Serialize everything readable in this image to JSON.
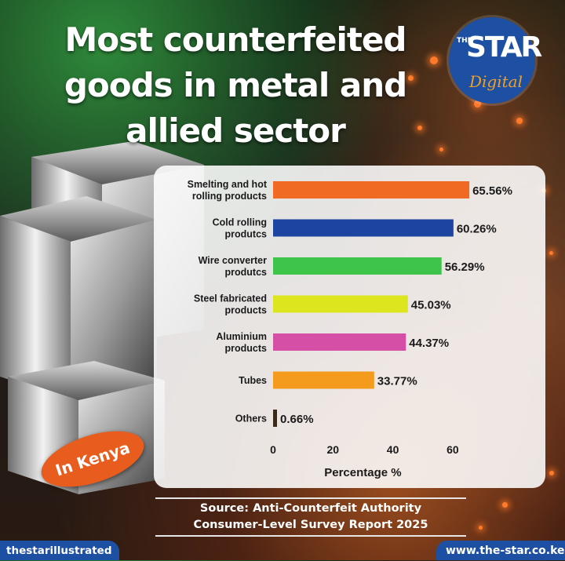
{
  "title_lines": [
    "Most counterfeited",
    "goods in metal and",
    "allied sector"
  ],
  "logo": {
    "the": "THE",
    "star": "STAR",
    "digital": "Digital"
  },
  "badge": "In Kenya",
  "source_lines": [
    "Source: Anti-Counterfeit Authority",
    "Consumer-Level Survey Report 2025"
  ],
  "footer": {
    "left": "thestarillustrated",
    "right": "www.the-star.co.ke"
  },
  "colors": {
    "brand_blue": "#1d4fa3",
    "badge_orange": "#e85d1e",
    "logo_accent": "#f0a023"
  },
  "chart_data": {
    "type": "bar",
    "orientation": "horizontal",
    "categories": [
      [
        "Smelting and hot",
        "rolling products"
      ],
      [
        "Cold rolling",
        "produtcs"
      ],
      [
        "Wire converter",
        "produtcs"
      ],
      [
        "Steel fabricated",
        "products"
      ],
      [
        "Aluminium",
        "products"
      ],
      [
        "Tubes"
      ],
      [
        "Others"
      ]
    ],
    "values": [
      65.56,
      60.26,
      56.29,
      45.03,
      44.37,
      33.77,
      0.66
    ],
    "value_labels": [
      "65.56%",
      "60.26%",
      "56.29%",
      "45.03%",
      "44.37%",
      "33.77%",
      "0.66%"
    ],
    "bar_colors": [
      "#f06a23",
      "#1d44a0",
      "#3ec34b",
      "#dde51f",
      "#d54fa6",
      "#f49a1c",
      "#3a2a1a"
    ],
    "xlabel": "Percentage %",
    "ylabel": "",
    "xlim": [
      0,
      70
    ],
    "xticks": [
      0,
      20,
      40,
      60
    ],
    "grid": false,
    "legend": "none"
  }
}
